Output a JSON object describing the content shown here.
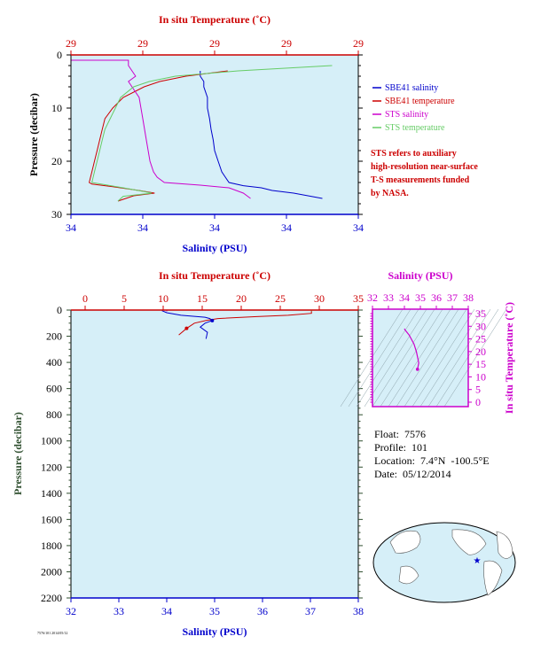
{
  "colors": {
    "salinity": "#0000cc",
    "temperature": "#cc0000",
    "sts_salinity": "#cc00cc",
    "sts_temperature": "#66cc66",
    "panel_bg": "#d6eff8",
    "ts_axis": "#cc00cc",
    "pressure_axis": "#2f4f2f"
  },
  "top_panel": {
    "top_axis_title": "In situ Temperature (˚C)",
    "bottom_axis_title": "Salinity (PSU)",
    "left_axis_title": "Pressure (decibar)",
    "top_ticks": [
      "29",
      "29",
      "29",
      "29",
      "29"
    ],
    "bottom_ticks": [
      "34",
      "34",
      "34",
      "34",
      "34"
    ],
    "left_ticks": [
      "0",
      "10",
      "20",
      "30"
    ],
    "legend": [
      {
        "label": "SBE41 salinity",
        "color": "#0000cc"
      },
      {
        "label": "SBE41 temperature",
        "color": "#cc0000"
      },
      {
        "label": "STS salinity",
        "color": "#cc00cc"
      },
      {
        "label": "STS temperature",
        "color": "#66cc66"
      }
    ],
    "note_lines": [
      "STS refers to auxiliary",
      "high-resolution near-surface",
      "T-S measurements funded",
      "by NASA."
    ]
  },
  "bottom_panel": {
    "top_axis_title": "In situ Temperature (˚C)",
    "bottom_axis_title": "Salinity (PSU)",
    "left_axis_title": "Pressure (decibar)",
    "top_ticks": [
      "0",
      "5",
      "10",
      "15",
      "20",
      "25",
      "30",
      "35"
    ],
    "bottom_ticks": [
      "32",
      "33",
      "34",
      "35",
      "36",
      "37",
      "38"
    ],
    "left_ticks": [
      "0",
      "200",
      "400",
      "600",
      "800",
      "1000",
      "1200",
      "1400",
      "1600",
      "1800",
      "2000",
      "2200"
    ]
  },
  "ts_panel": {
    "top_axis_title": "Salinity (PSU)",
    "right_axis_title": "In situ Temperature (˚C)",
    "top_ticks": [
      "32",
      "33",
      "34",
      "35",
      "36",
      "37",
      "38"
    ],
    "right_ticks": [
      "0",
      "5",
      "10",
      "15",
      "20",
      "25",
      "30",
      "35"
    ]
  },
  "float_info": {
    "float": "Float:  7576",
    "profile": "Profile:  101",
    "location": "Location:  7.4°N  -100.5°E",
    "date": "Date:  05/12/2014"
  },
  "footer_code": "7576/101 2014/05/12",
  "chart_data": [
    {
      "type": "line",
      "name": "near-surface profile",
      "y_axis": "pressure",
      "ylim": [
        30,
        0
      ],
      "series": [
        {
          "name": "SBE41 salinity",
          "axis": "salinity",
          "points": [
            [
              34.1,
              3
            ],
            [
              34.1,
              4
            ],
            [
              34.105,
              5
            ],
            [
              34.105,
              6
            ],
            [
              34.11,
              8
            ],
            [
              34.11,
              10
            ],
            [
              34.113,
              12
            ],
            [
              34.115,
              14
            ],
            [
              34.118,
              16
            ],
            [
              34.12,
              18
            ],
            [
              34.125,
              20
            ],
            [
              34.13,
              22
            ],
            [
              34.135,
              23
            ],
            [
              34.14,
              24
            ],
            [
              34.16,
              24.6
            ],
            [
              34.185,
              25
            ],
            [
              34.2,
              25.5
            ],
            [
              34.23,
              26
            ],
            [
              34.25,
              26.5
            ],
            [
              34.27,
              27
            ]
          ]
        },
        {
          "name": "SBE41 temperature",
          "axis": "temperature",
          "points": [
            [
              29.2,
              3
            ],
            [
              29.12,
              4
            ],
            [
              29.07,
              5
            ],
            [
              29.04,
              6
            ],
            [
              29.0,
              8
            ],
            [
              28.98,
              10
            ],
            [
              28.965,
              12
            ],
            [
              28.96,
              14
            ],
            [
              28.955,
              16
            ],
            [
              28.95,
              18
            ],
            [
              28.945,
              20
            ],
            [
              28.94,
              22
            ],
            [
              28.935,
              24
            ],
            [
              28.94,
              24.3
            ],
            [
              28.98,
              24.8
            ],
            [
              29.03,
              25.5
            ],
            [
              29.06,
              26
            ],
            [
              29.02,
              26.5
            ],
            [
              28.99,
              27.5
            ]
          ]
        },
        {
          "name": "STS salinity",
          "axis": "salinity",
          "points": [
            [
              33.92,
              1
            ],
            [
              34.0,
              1
            ],
            [
              34.0,
              2
            ],
            [
              34.01,
              4
            ],
            [
              34.0,
              5
            ],
            [
              34.015,
              8
            ],
            [
              34.02,
              12
            ],
            [
              34.025,
              16
            ],
            [
              34.03,
              20
            ],
            [
              34.035,
              22
            ],
            [
              34.04,
              23
            ],
            [
              34.05,
              24
            ],
            [
              34.1,
              24.5
            ],
            [
              34.14,
              25
            ],
            [
              34.16,
              26
            ],
            [
              34.17,
              27
            ]
          ]
        },
        {
          "name": "STS temperature",
          "axis": "temperature",
          "points": [
            [
              29.4,
              2
            ],
            [
              29.22,
              3
            ],
            [
              29.1,
              4
            ],
            [
              29.05,
              5
            ],
            [
              29.02,
              6
            ],
            [
              28.995,
              8
            ],
            [
              28.985,
              10
            ],
            [
              28.975,
              12
            ],
            [
              28.965,
              14
            ],
            [
              28.96,
              16
            ],
            [
              28.955,
              18
            ],
            [
              28.95,
              20
            ],
            [
              28.945,
              22
            ],
            [
              28.94,
              24
            ],
            [
              28.97,
              24.5
            ],
            [
              29.0,
              25
            ],
            [
              29.04,
              25.7
            ],
            [
              29.055,
              26
            ],
            [
              29.0,
              26.6
            ],
            [
              28.99,
              27.5
            ]
          ]
        }
      ]
    },
    {
      "type": "line",
      "name": "full-depth profile",
      "xlim_salinity": [
        32,
        38
      ],
      "xlim_temperature": [
        0,
        35
      ],
      "ylim": [
        2200,
        0
      ],
      "series": [
        {
          "name": "SBE41 salinity",
          "axis": "salinity",
          "points": [
            [
              33.9,
              5
            ],
            [
              34.0,
              20
            ],
            [
              34.3,
              40
            ],
            [
              34.8,
              55
            ],
            [
              34.9,
              65
            ],
            [
              34.95,
              80
            ],
            [
              34.8,
              100
            ],
            [
              34.7,
              130
            ],
            [
              34.85,
              170
            ],
            [
              34.82,
              220
            ]
          ]
        },
        {
          "name": "SBE41 temperature",
          "axis": "temperature",
          "points": [
            [
              29.0,
              5
            ],
            [
              29.0,
              25
            ],
            [
              26.0,
              40
            ],
            [
              22.0,
              50
            ],
            [
              17.0,
              65
            ],
            [
              15.5,
              80
            ],
            [
              14.0,
              100
            ],
            [
              13.0,
              140
            ],
            [
              12.0,
              190
            ]
          ]
        },
        {
          "name": "STS salinity",
          "axis": "salinity",
          "points": [
            [
              34.0,
              2
            ],
            [
              34.0,
              10
            ]
          ]
        },
        {
          "name": "STS temperature",
          "axis": "temperature",
          "points": [
            [
              29.0,
              2
            ],
            [
              29.0,
              10
            ]
          ]
        }
      ]
    },
    {
      "type": "scatter",
      "name": "T-S diagram",
      "xlim": [
        32,
        38
      ],
      "ylim": [
        0,
        35
      ],
      "series": [
        {
          "name": "T-S",
          "points": [
            [
              34.0,
              29.0
            ],
            [
              34.05,
              28.5
            ],
            [
              34.3,
              26.5
            ],
            [
              34.6,
              23.0
            ],
            [
              34.75,
              20.0
            ],
            [
              34.85,
              17.0
            ],
            [
              34.9,
              15.5
            ],
            [
              34.85,
              14.0
            ],
            [
              34.82,
              13.0
            ]
          ]
        }
      ]
    }
  ]
}
